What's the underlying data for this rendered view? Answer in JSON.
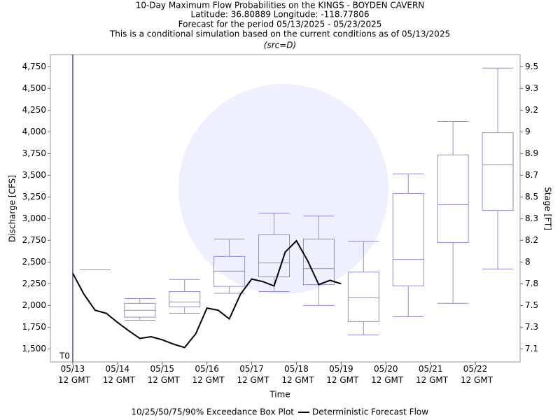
{
  "chart_data": {
    "type": "box",
    "title": [
      "10-Day Maximum Flow Probabilities on the KINGS - BOYDEN CAVERN",
      "Latitude: 36.80889 Longitude: -118.77806",
      "Forecast for the period 05/13/2025 - 05/23/2025",
      "This is a conditional simulation based on the current conditions as of 05/13/2025"
    ],
    "subtitle": "(src=D)",
    "x_label": "Time",
    "y_label": "Discharge [CFS]",
    "y2_label": "Stage [FT]",
    "xlim": [
      "2025-05-13T00:00Z",
      "2025-05-23T12:00Z"
    ],
    "xticks": [
      {
        "value": "2025-05-13T12:00Z",
        "label": "05/13 12 GMT"
      },
      {
        "value": "2025-05-14T12:00Z",
        "label": "05/14 12 GMT"
      },
      {
        "value": "2025-05-15T12:00Z",
        "label": "05/15 12 GMT"
      },
      {
        "value": "2025-05-16T12:00Z",
        "label": "05/16 12 GMT"
      },
      {
        "value": "2025-05-17T12:00Z",
        "label": "05/17 12 GMT"
      },
      {
        "value": "2025-05-18T12:00Z",
        "label": "05/18 12 GMT"
      },
      {
        "value": "2025-05-19T12:00Z",
        "label": "05/19 12 GMT"
      },
      {
        "value": "2025-05-20T12:00Z",
        "label": "05/20 12 GMT"
      },
      {
        "value": "2025-05-21T12:00Z",
        "label": "05/21 12 GMT"
      },
      {
        "value": "2025-05-22T12:00Z",
        "label": "05/22 12 GMT"
      }
    ],
    "ylim": [
      1350,
      4890
    ],
    "yticks": [
      {
        "value": 1500,
        "label": "1,500"
      },
      {
        "value": 1750,
        "label": "1,750"
      },
      {
        "value": 2000,
        "label": "2,000"
      },
      {
        "value": 2250,
        "label": "2,250"
      },
      {
        "value": 2500,
        "label": "2,500"
      },
      {
        "value": 2750,
        "label": "2,750"
      },
      {
        "value": 3000,
        "label": "3,000"
      },
      {
        "value": 3250,
        "label": "3,250"
      },
      {
        "value": 3500,
        "label": "3,500"
      },
      {
        "value": 3750,
        "label": "3,750"
      },
      {
        "value": 4000,
        "label": "4,000"
      },
      {
        "value": 4250,
        "label": "4,250"
      },
      {
        "value": 4500,
        "label": "4,500"
      },
      {
        "value": 4750,
        "label": "4,750"
      }
    ],
    "y2ticks": [
      7.1,
      7.3,
      7.5,
      7.8,
      8.0,
      8.2,
      8.3,
      8.5,
      8.7,
      8.9,
      9.0,
      9.2,
      9.3,
      9.5
    ],
    "annotations": [
      {
        "text": "T0",
        "x": "2025-05-13T12:00Z"
      }
    ],
    "series": [
      {
        "name": "10/25/50/75/90% Exceedance Box Plot",
        "type": "box",
        "color": "#8c8cdc",
        "x": [
          "2025-05-14T00:00Z",
          "2025-05-15T00:00Z",
          "2025-05-16T00:00Z",
          "2025-05-17T00:00Z",
          "2025-05-18T00:00Z",
          "2025-05-19T00:00Z",
          "2025-05-20T00:00Z",
          "2025-05-21T00:00Z",
          "2025-05-22T00:00Z",
          "2025-05-23T00:00Z"
        ],
        "p10": [
          2410,
          1830,
          1910,
          2140,
          2160,
          2000,
          1660,
          1870,
          2025,
          2420
        ],
        "p25": [
          2410,
          1865,
          1985,
          2220,
          2330,
          2240,
          1815,
          2225,
          2725,
          3095
        ],
        "p50": [
          2410,
          1945,
          2040,
          2395,
          2490,
          2425,
          2090,
          2530,
          3160,
          3620
        ],
        "p75": [
          2410,
          2025,
          2160,
          2565,
          2815,
          2765,
          2385,
          3290,
          3735,
          3990
        ],
        "p90": [
          2410,
          2080,
          2300,
          2765,
          3065,
          3030,
          2740,
          3515,
          4120,
          4735
        ]
      },
      {
        "name": "Deterministic Forecast Flow",
        "type": "line",
        "color": "#000000",
        "x": [
          "2025-05-13T12:00Z",
          "2025-05-13T18:00Z",
          "2025-05-14T00:00Z",
          "2025-05-14T06:00Z",
          "2025-05-14T12:00Z",
          "2025-05-14T18:00Z",
          "2025-05-15T00:00Z",
          "2025-05-15T06:00Z",
          "2025-05-15T12:00Z",
          "2025-05-15T18:00Z",
          "2025-05-16T00:00Z",
          "2025-05-16T06:00Z",
          "2025-05-16T12:00Z",
          "2025-05-16T18:00Z",
          "2025-05-17T00:00Z",
          "2025-05-17T06:00Z",
          "2025-05-17T12:00Z",
          "2025-05-17T18:00Z",
          "2025-05-18T00:00Z",
          "2025-05-18T06:00Z",
          "2025-05-18T12:00Z",
          "2025-05-18T18:00Z",
          "2025-05-19T00:00Z",
          "2025-05-19T06:00Z",
          "2025-05-19T12:00Z"
        ],
        "values": [
          2370,
          2130,
          1945,
          1910,
          1805,
          1710,
          1620,
          1640,
          1605,
          1555,
          1515,
          1675,
          1970,
          1945,
          1845,
          2130,
          2305,
          2275,
          2225,
          2615,
          2745,
          2515,
          2240,
          2290,
          2250
        ]
      }
    ]
  }
}
